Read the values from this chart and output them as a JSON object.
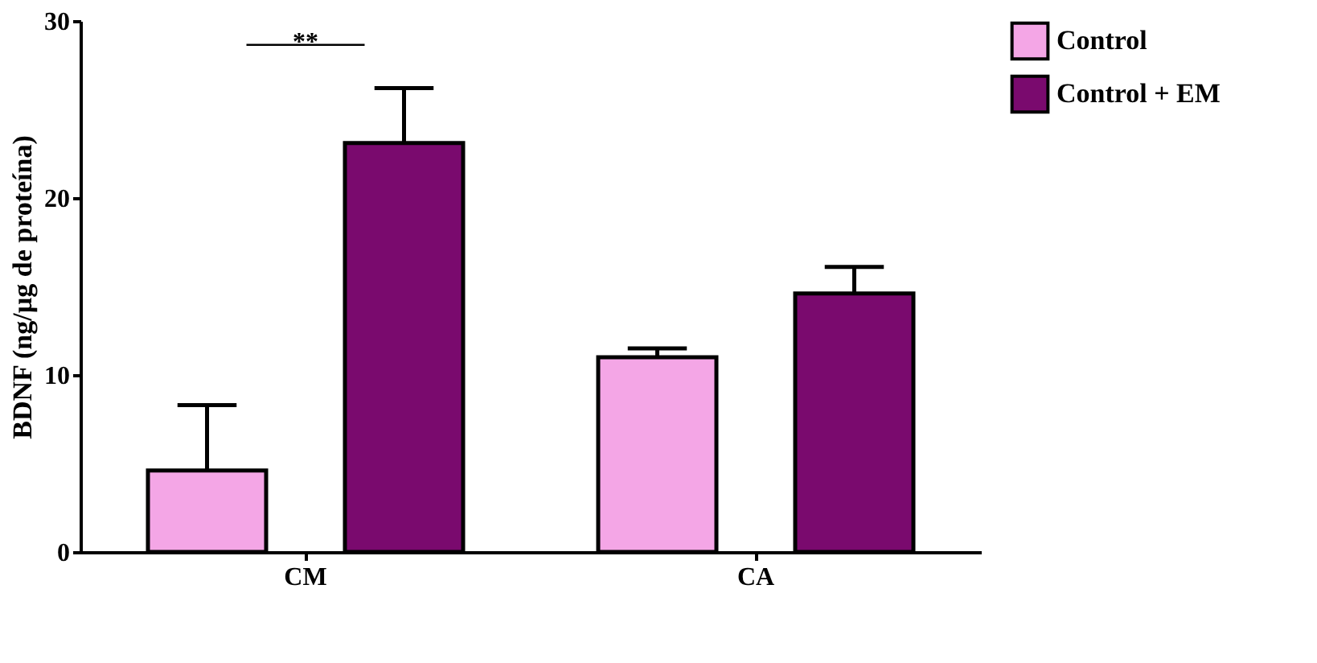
{
  "chart_data": {
    "type": "bar",
    "ylabel": "BDNF (ng/µg de proteína)",
    "categories": [
      "CM",
      "CA"
    ],
    "series": [
      {
        "name": "Control",
        "color": "#f4a6e6",
        "values": [
          4.6,
          11.0
        ],
        "errors": [
          [
            4.6,
            8.3
          ],
          [
            11.0,
            11.5
          ]
        ]
      },
      {
        "name": "Control + EM",
        "color": "#7a0a6e",
        "values": [
          23.1,
          14.6
        ],
        "errors": [
          [
            23.1,
            26.2
          ],
          [
            14.6,
            16.1
          ]
        ]
      }
    ],
    "ylim": [
      0,
      30
    ],
    "yticks": [
      0,
      10,
      20,
      30
    ],
    "grid": false,
    "legend": "top right",
    "annotations": [
      "**"
    ]
  }
}
